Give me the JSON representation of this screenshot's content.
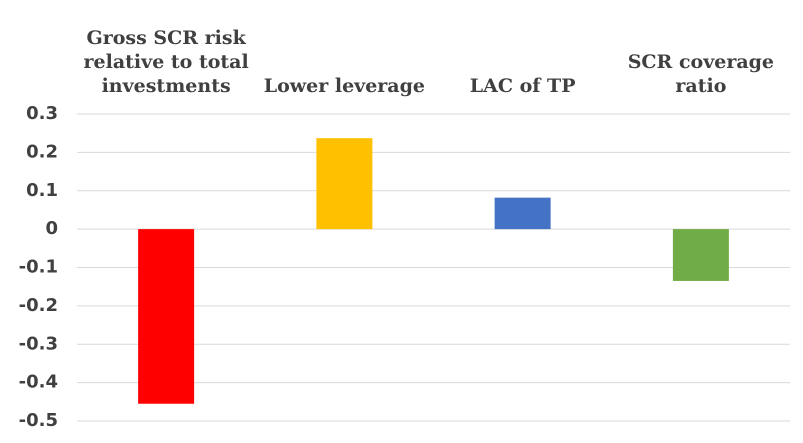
{
  "chart_data": {
    "type": "bar",
    "categories": [
      "Gross SCR risk relative to total investments",
      "Lower leverage",
      "LAC of TP",
      "SCR coverage ratio"
    ],
    "values": [
      -0.455,
      0.237,
      0.082,
      -0.135
    ],
    "colors": [
      "#ff0000",
      "#ffc000",
      "#4472c4",
      "#70ad47"
    ],
    "ylim": [
      -0.5,
      0.3
    ],
    "yticks": [
      0.3,
      0.2,
      0.1,
      0,
      -0.1,
      -0.2,
      -0.3,
      -0.4,
      -0.5
    ],
    "grid": true
  }
}
